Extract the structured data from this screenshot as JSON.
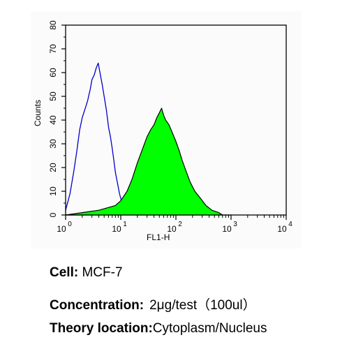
{
  "chart_data": {
    "type": "area",
    "xlabel": "FL1-H",
    "ylabel": "Counts",
    "xscale": "log",
    "xlim": [
      1,
      10000
    ],
    "ylim": [
      0,
      80
    ],
    "xticks": [
      {
        "value": 1,
        "base": "10",
        "exp": "0"
      },
      {
        "value": 10,
        "base": "10",
        "exp": "1"
      },
      {
        "value": 100,
        "base": "10",
        "exp": "2"
      },
      {
        "value": 1000,
        "base": "10",
        "exp": "3"
      },
      {
        "value": 10000,
        "base": "10",
        "exp": "4"
      }
    ],
    "yticks": [
      "0",
      "10",
      "20",
      "30",
      "40",
      "50",
      "60",
      "70",
      "80"
    ],
    "grid": false,
    "series": [
      {
        "style": "outline",
        "color": "#0000cc",
        "x": [
          1.0,
          1.2,
          1.4,
          1.6,
          1.8,
          2.0,
          2.2,
          2.5,
          2.8,
          3.0,
          3.3,
          3.6,
          3.9,
          4.2,
          4.6,
          5.0,
          5.5,
          6.0,
          6.5,
          7.0,
          7.5,
          8.0,
          8.8,
          9.5,
          10.5,
          11.5,
          12.5,
          13.5
        ],
        "values": [
          2,
          9,
          18,
          27,
          36,
          41,
          44,
          48,
          53,
          57,
          59,
          62,
          64,
          60,
          55,
          50,
          44,
          37,
          33,
          28,
          23,
          18,
          13,
          9,
          5,
          2,
          1,
          0
        ]
      },
      {
        "style": "filled",
        "fill": "#00ff00",
        "outline": "#000000",
        "x": [
          1.0,
          2.0,
          4.0,
          8.0,
          10,
          13,
          16,
          20,
          25,
          30,
          35,
          40,
          45,
          50,
          55,
          60,
          65,
          70,
          75,
          85,
          100,
          115,
          130,
          150,
          180,
          220,
          280,
          350,
          450,
          600,
          700,
          800,
          1000
        ],
        "values": [
          0,
          1,
          2,
          4,
          6,
          10,
          15,
          22,
          28,
          33,
          36,
          38,
          41,
          43,
          45,
          42,
          40,
          39,
          38,
          35,
          31,
          27,
          23,
          19,
          14,
          10,
          7,
          4,
          2,
          1,
          0,
          0,
          0
        ]
      }
    ]
  },
  "captions": {
    "cell": {
      "label": "Cell:",
      "value": "MCF-7"
    },
    "concentration": {
      "label": "Concentration:",
      "value": "2μg/test（100ul）"
    },
    "theory": {
      "label": "Theory location:",
      "value": "Cytoplasm/Nucleus"
    }
  }
}
